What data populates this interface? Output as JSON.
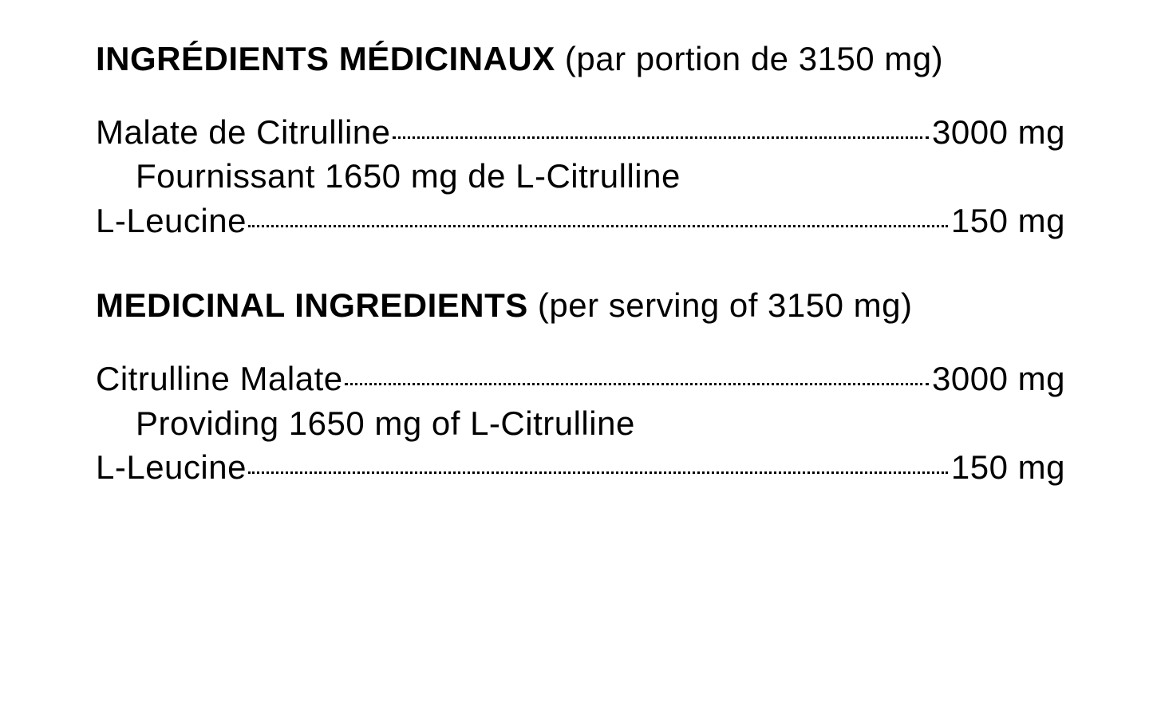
{
  "text_color": "#000000",
  "background_color": "#ffffff",
  "font_family": "Arial Narrow, Arial, Helvetica, sans-serif",
  "heading_fontsize_pt": 32,
  "body_fontsize_pt": 32,
  "dot_leader_color": "#000000",
  "sections": [
    {
      "heading_bold": "INGRÉDIENTS MÉDICINAUX",
      "heading_qualifier": " (par portion de 3150 mg)",
      "items": [
        {
          "name": "Malate de Citrulline",
          "amount": "3000 mg",
          "detail": "Fournissant 1650 mg de L-Citrulline"
        },
        {
          "name": "L-Leucine",
          "amount": "150 mg"
        }
      ]
    },
    {
      "heading_bold": "MEDICINAL INGREDIENTS",
      "heading_qualifier": " (per serving of 3150 mg)",
      "items": [
        {
          "name": "Citrulline Malate",
          "amount": "3000 mg",
          "detail": "Providing 1650 mg of L-Citrulline"
        },
        {
          "name": "L-Leucine",
          "amount": "150 mg"
        }
      ]
    }
  ]
}
